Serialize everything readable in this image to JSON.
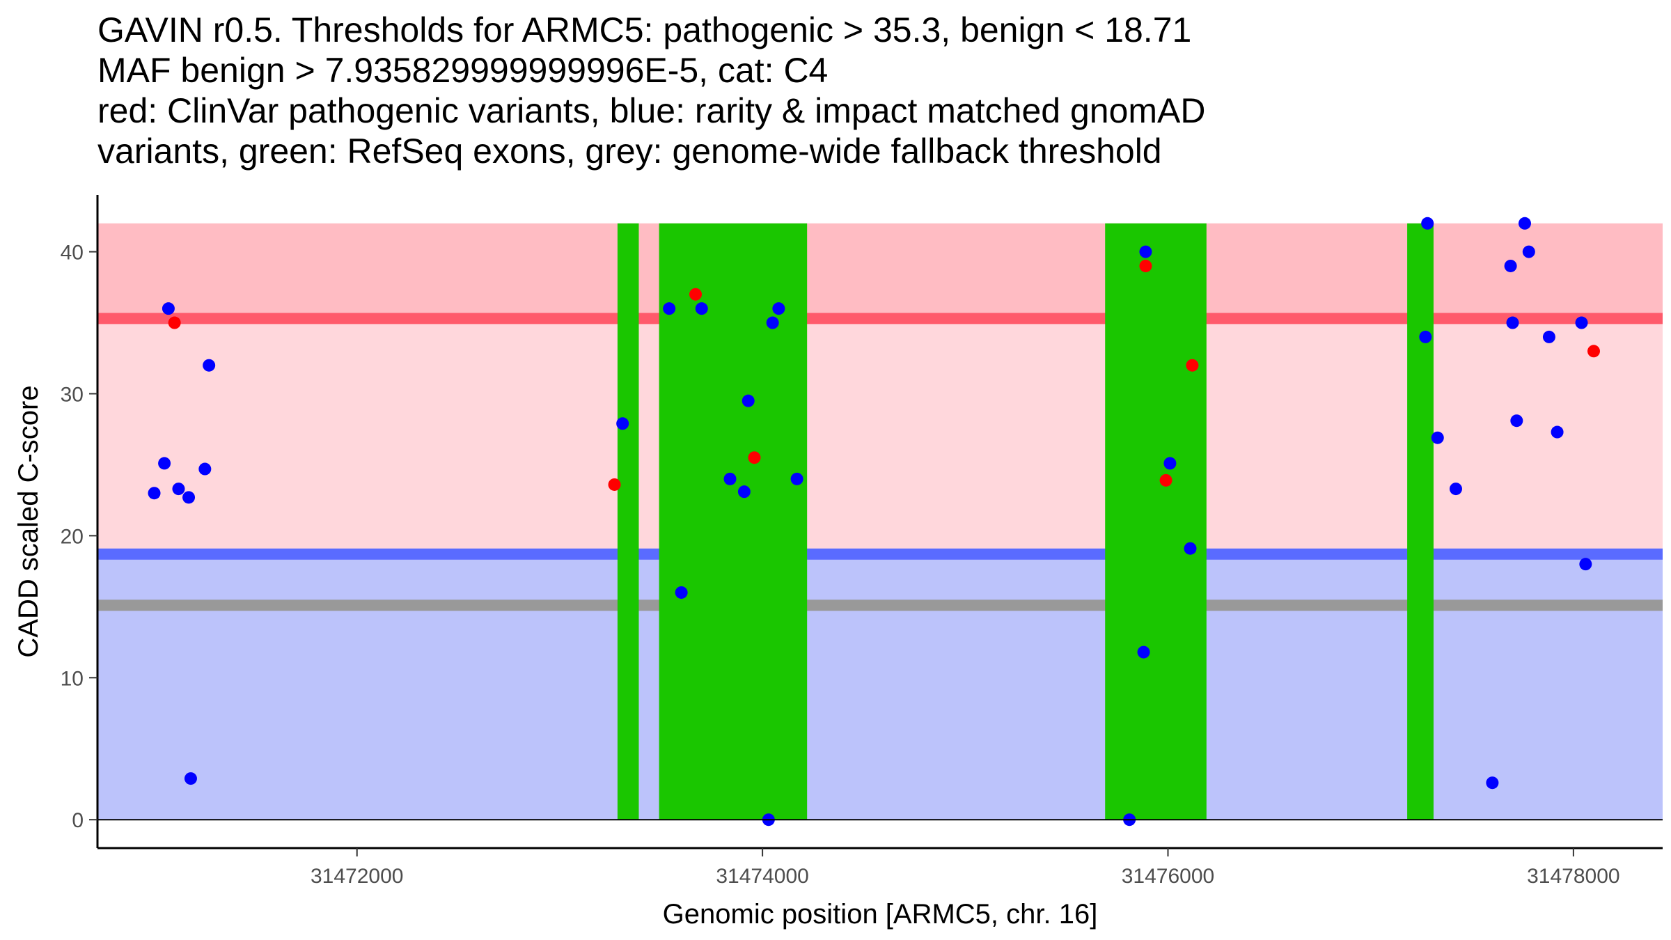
{
  "title_lines": [
    "GAVIN r0.5. Thresholds for ARMC5: pathogenic > 35.3, benign < 18.71",
    "MAF benign > 7.935829999999996E-5, cat: C4",
    "red: ClinVar pathogenic variants, blue: rarity & impact matched gnomAD",
    "variants, green: RefSeq exons, grey: genome-wide fallback threshold"
  ],
  "chart_data": {
    "type": "scatter",
    "xlabel": "Genomic position [ARMC5, chr. 16]",
    "ylabel": "CADD scaled C-score",
    "xlim": [
      31470720,
      31478440
    ],
    "ylim": [
      -2,
      44
    ],
    "x_ticks": [
      31472000,
      31474000,
      31476000,
      31478000
    ],
    "y_ticks": [
      0,
      10,
      20,
      30,
      40
    ],
    "thresholds": {
      "pathogenic": 35.3,
      "benign": 18.71,
      "genome_wide_fallback": 15.1
    },
    "bands": [
      {
        "name": "benign region",
        "from": 0,
        "to": 18.71,
        "color": "#bcc3fb"
      },
      {
        "name": "intermediate region",
        "from": 18.71,
        "to": 35.3,
        "color": "#ffd7dc"
      },
      {
        "name": "pathogenic region",
        "from": 35.3,
        "to": 42,
        "color": "#ffbcc3"
      }
    ],
    "colors": {
      "pathogenic_line": "#ff5a6b",
      "benign_line": "#5a6bff",
      "fallback_line": "#999999",
      "exon": "#1ac600",
      "clinvar_pathogenic": "#ff0000",
      "gnomad": "#0000ff"
    },
    "exons": [
      {
        "start": 31473285,
        "end": 31473390
      },
      {
        "start": 31473490,
        "end": 31474220
      },
      {
        "start": 31475690,
        "end": 31476190
      },
      {
        "start": 31477180,
        "end": 31477310
      }
    ],
    "series": [
      {
        "name": "ClinVar pathogenic variants",
        "color": "#ff0000",
        "points": [
          [
            31471100,
            35
          ],
          [
            31473270,
            23.6
          ],
          [
            31473670,
            37
          ],
          [
            31473960,
            25.5
          ],
          [
            31475890,
            39
          ],
          [
            31475990,
            23.9
          ],
          [
            31476120,
            32
          ],
          [
            31478100,
            33
          ]
        ]
      },
      {
        "name": "rarity & impact matched gnomAD variants",
        "color": "#0000ff",
        "points": [
          [
            31471000,
            23
          ],
          [
            31471050,
            25.1
          ],
          [
            31471070,
            36
          ],
          [
            31471120,
            23.3
          ],
          [
            31471170,
            22.7
          ],
          [
            31471180,
            2.9
          ],
          [
            31471250,
            24.7
          ],
          [
            31471270,
            32
          ],
          [
            31473310,
            27.9
          ],
          [
            31473540,
            36
          ],
          [
            31473600,
            16
          ],
          [
            31473700,
            36
          ],
          [
            31473840,
            24
          ],
          [
            31473910,
            23.1
          ],
          [
            31473930,
            29.5
          ],
          [
            31474030,
            0
          ],
          [
            31474050,
            35
          ],
          [
            31474080,
            36
          ],
          [
            31474170,
            24
          ],
          [
            31475810,
            0
          ],
          [
            31475880,
            11.8
          ],
          [
            31475890,
            40
          ],
          [
            31476010,
            25.1
          ],
          [
            31476110,
            19.1
          ],
          [
            31477270,
            34
          ],
          [
            31477280,
            42
          ],
          [
            31477330,
            26.9
          ],
          [
            31477420,
            23.3
          ],
          [
            31477600,
            2.6
          ],
          [
            31477690,
            39
          ],
          [
            31477700,
            35
          ],
          [
            31477720,
            28.1
          ],
          [
            31477760,
            42
          ],
          [
            31477780,
            40
          ],
          [
            31477880,
            34
          ],
          [
            31477920,
            27.3
          ],
          [
            31478040,
            35
          ],
          [
            31478060,
            18
          ]
        ]
      }
    ]
  }
}
